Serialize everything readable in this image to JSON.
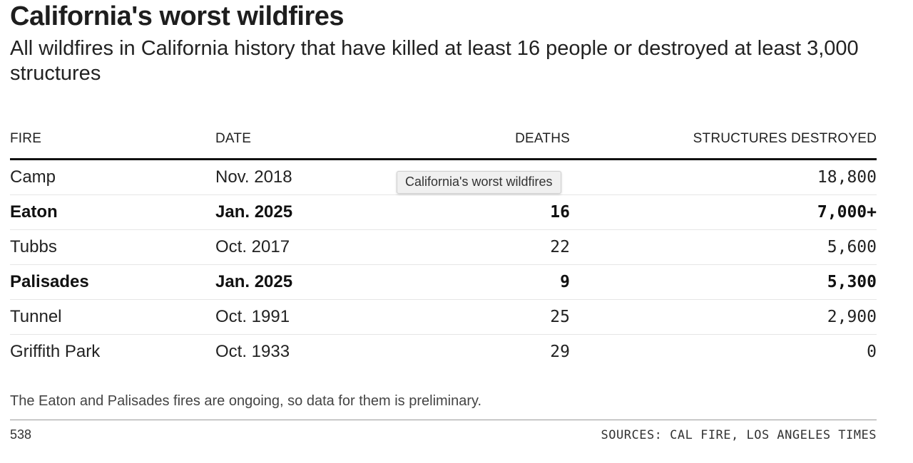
{
  "title": "California's worst wildfires",
  "subtitle": "All wildfires in California history that have killed at least 16 people or destroyed at least 3,000 structures",
  "tooltip": "California's worst wildfires",
  "note": "The Eaton and Palisades fires are ongoing, so data for them is preliminary.",
  "brand": "538",
  "sources": "SOURCES: CAL FIRE, LOS ANGELES TIMES",
  "chart_data": {
    "type": "table",
    "title": "California's worst wildfires",
    "columns": [
      "FIRE",
      "DATE",
      "DEATHS",
      "STRUCTURES DESTROYED"
    ],
    "rows": [
      {
        "fire": "Camp",
        "date": "Nov. 2018",
        "deaths": "",
        "structures": "18,800",
        "highlight": false
      },
      {
        "fire": "Eaton",
        "date": "Jan. 2025",
        "deaths": "16",
        "structures": "7,000+",
        "highlight": true
      },
      {
        "fire": "Tubbs",
        "date": "Oct. 2017",
        "deaths": "22",
        "structures": "5,600",
        "highlight": false
      },
      {
        "fire": "Palisades",
        "date": "Jan. 2025",
        "deaths": "9",
        "structures": "5,300",
        "highlight": true
      },
      {
        "fire": "Tunnel",
        "date": "Oct. 1991",
        "deaths": "25",
        "structures": "2,900",
        "highlight": false
      },
      {
        "fire": "Griffith Park",
        "date": "Oct. 1933",
        "deaths": "29",
        "structures": "0",
        "highlight": false
      }
    ]
  }
}
